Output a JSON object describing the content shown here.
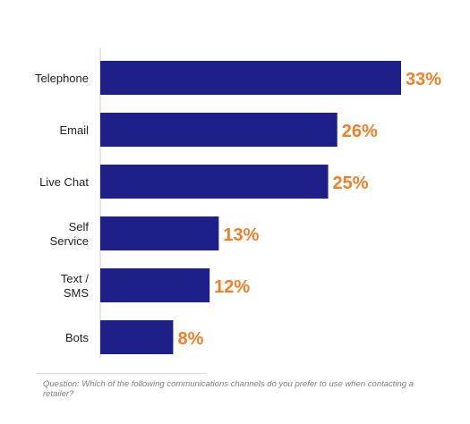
{
  "chart_data": {
    "type": "bar",
    "orientation": "horizontal",
    "categories": [
      [
        "Telephone"
      ],
      [
        "Email"
      ],
      [
        "Live Chat"
      ],
      [
        "Self",
        "Service"
      ],
      [
        "Text /",
        "SMS"
      ],
      [
        "Bots"
      ]
    ],
    "values": [
      33,
      26,
      25,
      13,
      12,
      8
    ],
    "value_labels": [
      "33%",
      "26%",
      "25%",
      "13%",
      "12%",
      "8%"
    ],
    "unit": "%",
    "xlim": [
      0,
      33
    ],
    "grid": false,
    "legend": "none",
    "colors": {
      "bar": "#1f1f8a",
      "value_label": "#f07f2a",
      "category_label": "#222222",
      "axis": "#cfcfcf"
    }
  },
  "footnote": "Question: Which of the following communications channels do you prefer to use when contacting a retailer?"
}
